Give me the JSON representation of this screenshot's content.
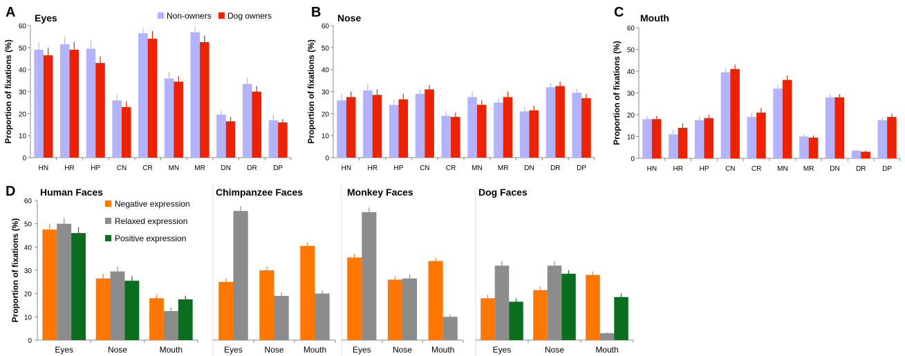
{
  "colors": {
    "non_owners": "#b3b3ff",
    "dog_owners": "#ee2200",
    "negative": "#ff7700",
    "relaxed": "#8c8c8c",
    "positive": "#0b6e1e",
    "error_bar_a": "#b3b3ff",
    "error_bar_b": "#ee2200"
  },
  "legend_top": {
    "items": [
      "Non-owners",
      "Dog owners"
    ]
  },
  "legend_bottom": {
    "items": [
      "Negative expression",
      "Relaxed expression",
      "Positive expression"
    ]
  },
  "chart_data": [
    {
      "panel": "A",
      "type": "bar",
      "title": "Eyes",
      "ylabel": "Proportion of fixations (%)",
      "ylim": [
        0,
        60
      ],
      "yticks": [
        0,
        10,
        20,
        30,
        40,
        50,
        60
      ],
      "categories": [
        "HN",
        "HR",
        "HP",
        "CN",
        "CR",
        "MN",
        "MR",
        "DN",
        "DR",
        "DP"
      ],
      "series": [
        {
          "name": "Non-owners",
          "values": [
            49,
            51.5,
            49.5,
            26,
            56.5,
            36,
            57,
            19.5,
            33.5,
            17
          ],
          "errors": [
            3.5,
            3.5,
            3.5,
            2.5,
            2.5,
            3,
            2.5,
            2,
            3,
            2.5
          ]
        },
        {
          "name": "Dog owners",
          "values": [
            46.5,
            49,
            43,
            23,
            54,
            34.5,
            52.5,
            16.5,
            30,
            16
          ],
          "errors": [
            3.5,
            3.5,
            3,
            2.5,
            3.5,
            2.5,
            3,
            2,
            2.5,
            1.5
          ]
        }
      ],
      "legend": "top"
    },
    {
      "panel": "B",
      "type": "bar",
      "title": "Nose",
      "ylabel": "Proportion of fixations (%)",
      "ylim": [
        0,
        60
      ],
      "yticks": [
        0,
        10,
        20,
        30,
        40,
        50,
        60
      ],
      "categories": [
        "HN",
        "HR",
        "HP",
        "CN",
        "CR",
        "MN",
        "MR",
        "DN",
        "DR",
        "DP"
      ],
      "series": [
        {
          "name": "Non-owners",
          "values": [
            26,
            30.5,
            24,
            29,
            19,
            27.5,
            25,
            21,
            32,
            29.5
          ],
          "errors": [
            3,
            3,
            2.5,
            2,
            2,
            2.5,
            2,
            2,
            2,
            2
          ]
        },
        {
          "name": "Dog owners",
          "values": [
            27.5,
            28.5,
            26.5,
            31,
            18.5,
            24,
            27.5,
            21.5,
            32.5,
            27
          ],
          "errors": [
            2.5,
            2.5,
            2.5,
            2,
            2,
            2,
            2.5,
            2,
            2,
            2
          ]
        }
      ]
    },
    {
      "panel": "C",
      "type": "bar",
      "title": "Mouth",
      "ylabel": "Proportion of fixations (%)",
      "ylim": [
        0,
        60
      ],
      "yticks": [
        0,
        10,
        20,
        30,
        40,
        50,
        60
      ],
      "categories": [
        "HN",
        "HR",
        "HP",
        "CN",
        "CR",
        "MN",
        "MR",
        "DN",
        "DR",
        "DP"
      ],
      "series": [
        {
          "name": "Non-owners",
          "values": [
            18,
            11,
            17.5,
            39.5,
            19,
            32,
            10,
            28,
            3.5,
            17.5
          ],
          "errors": [
            1.5,
            2,
            1.5,
            2,
            2,
            2,
            1,
            1.5,
            0.5,
            1.5
          ]
        },
        {
          "name": "Dog owners",
          "values": [
            18,
            14,
            18.5,
            41,
            21,
            36,
            9.5,
            28,
            3,
            19
          ],
          "errors": [
            1.5,
            2,
            1.5,
            2,
            2,
            2,
            1,
            1.5,
            0.5,
            1.5
          ]
        }
      ]
    },
    {
      "panel": "D",
      "type": "bar",
      "ylabel": "Proportion of fixations (%)",
      "ylim": [
        0,
        60
      ],
      "yticks": [
        0,
        10,
        20,
        30,
        40,
        50,
        60
      ],
      "categories": [
        "Eyes",
        "Nose",
        "Mouth"
      ],
      "subplots": [
        {
          "title": "Human Faces",
          "series": [
            {
              "name": "Negative expression",
              "values": [
                47.5,
                26.5,
                18
              ],
              "errors": [
                2.5,
                2,
                1.5
              ]
            },
            {
              "name": "Relaxed expression",
              "values": [
                50,
                29.5,
                12.5
              ],
              "errors": [
                2.5,
                2,
                1.5
              ]
            },
            {
              "name": "Positive expression",
              "values": [
                46,
                25.5,
                17.5
              ],
              "errors": [
                2.5,
                2,
                1.5
              ]
            }
          ],
          "legend": "top-right"
        },
        {
          "title": "Chimpanzee Faces",
          "series": [
            {
              "name": "Negative expression",
              "values": [
                25,
                30,
                40.5
              ],
              "errors": [
                1.5,
                1.5,
                1.5
              ]
            },
            {
              "name": "Relaxed expression",
              "values": [
                55.5,
                19,
                20
              ],
              "errors": [
                2,
                1.5,
                1.5
              ]
            }
          ]
        },
        {
          "title": "Monkey Faces",
          "series": [
            {
              "name": "Negative expression",
              "values": [
                35.5,
                26,
                34
              ],
              "errors": [
                1.5,
                1.5,
                1.5
              ]
            },
            {
              "name": "Relaxed expression",
              "values": [
                55,
                26.5,
                10
              ],
              "errors": [
                2,
                1.5,
                1
              ]
            }
          ]
        },
        {
          "title": "Dog Faces",
          "series": [
            {
              "name": "Negative expression",
              "values": [
                18,
                21.5,
                28
              ],
              "errors": [
                1.5,
                1.5,
                1.5
              ]
            },
            {
              "name": "Relaxed expression",
              "values": [
                32,
                32,
                3
              ],
              "errors": [
                2,
                2,
                0.5
              ]
            },
            {
              "name": "Positive expression",
              "values": [
                16.5,
                28.5,
                18.5
              ],
              "errors": [
                1.5,
                1.5,
                1.5
              ]
            }
          ]
        }
      ]
    }
  ]
}
